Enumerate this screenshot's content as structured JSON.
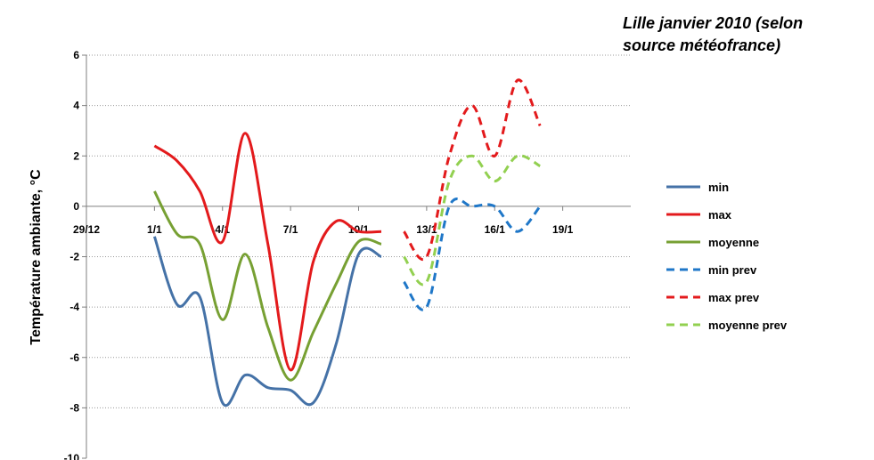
{
  "title_lines": [
    "Lille janvier 2010 (selon",
    "source météofrance)"
  ],
  "chart_data": {
    "type": "line",
    "title": "Lille janvier 2010 (selon source météofrance)",
    "ylabel": "Température ambiante, °C",
    "xlabel": "",
    "ylim": [
      -10,
      6
    ],
    "yticks": [
      -10,
      -8,
      -6,
      -4,
      -2,
      0,
      2,
      4,
      6
    ],
    "ytick_labels": [
      "-10",
      "-8",
      "-6",
      "-4",
      "-2",
      "0",
      "2",
      "4",
      "6"
    ],
    "xlim": [
      -3,
      21
    ],
    "xticks": [
      -3,
      0,
      3,
      6,
      9,
      12,
      15,
      18
    ],
    "xtick_labels": [
      "29/12",
      "1/1",
      "4/1",
      "7/1",
      "10/1",
      "13/1",
      "16/1",
      "19/1"
    ],
    "x_axis_crosses_at": 0,
    "grid": "horizontal dotted",
    "legend_position": "right",
    "series": [
      {
        "name": "min",
        "color": "#4572A7",
        "dash": "solid",
        "x": [
          0,
          1,
          2,
          3,
          4,
          5,
          6,
          7,
          8,
          9,
          10
        ],
        "y": [
          -1.2,
          -3.9,
          -3.6,
          -7.8,
          -6.7,
          -7.2,
          -7.3,
          -7.8,
          -5.5,
          -1.9,
          -2.0
        ]
      },
      {
        "name": "max",
        "color": "#E31A1C",
        "dash": "solid",
        "x": [
          0,
          1,
          2,
          3,
          4,
          5,
          6,
          7,
          8,
          9,
          10
        ],
        "y": [
          2.4,
          1.8,
          0.6,
          -1.4,
          2.9,
          -1.5,
          -6.5,
          -2.2,
          -0.6,
          -1.0,
          -1.0
        ]
      },
      {
        "name": "moyenne",
        "color": "#77A033",
        "dash": "solid",
        "x": [
          0,
          1,
          2,
          3,
          4,
          5,
          6,
          7,
          8,
          9,
          10
        ],
        "y": [
          0.6,
          -1.1,
          -1.5,
          -4.5,
          -1.9,
          -4.8,
          -6.9,
          -5.0,
          -3.1,
          -1.4,
          -1.5
        ]
      },
      {
        "name": "min prev",
        "color": "#1F77C8",
        "dash": "dashed",
        "x": [
          11,
          12,
          13,
          14,
          15,
          16,
          17
        ],
        "y": [
          -3.0,
          -4.0,
          0.0,
          0.0,
          0.0,
          -1.0,
          0.0
        ]
      },
      {
        "name": "max prev",
        "color": "#E31A1C",
        "dash": "dashed",
        "x": [
          11,
          12,
          13,
          14,
          15,
          16,
          17
        ],
        "y": [
          -1.0,
          -2.0,
          2.0,
          4.0,
          2.0,
          5.0,
          3.2
        ]
      },
      {
        "name": "moyenne prev",
        "color": "#92D050",
        "dash": "dashed",
        "x": [
          11,
          12,
          13,
          14,
          15,
          16,
          17
        ],
        "y": [
          -2.0,
          -3.0,
          1.0,
          2.0,
          1.0,
          2.0,
          1.6
        ]
      }
    ]
  }
}
